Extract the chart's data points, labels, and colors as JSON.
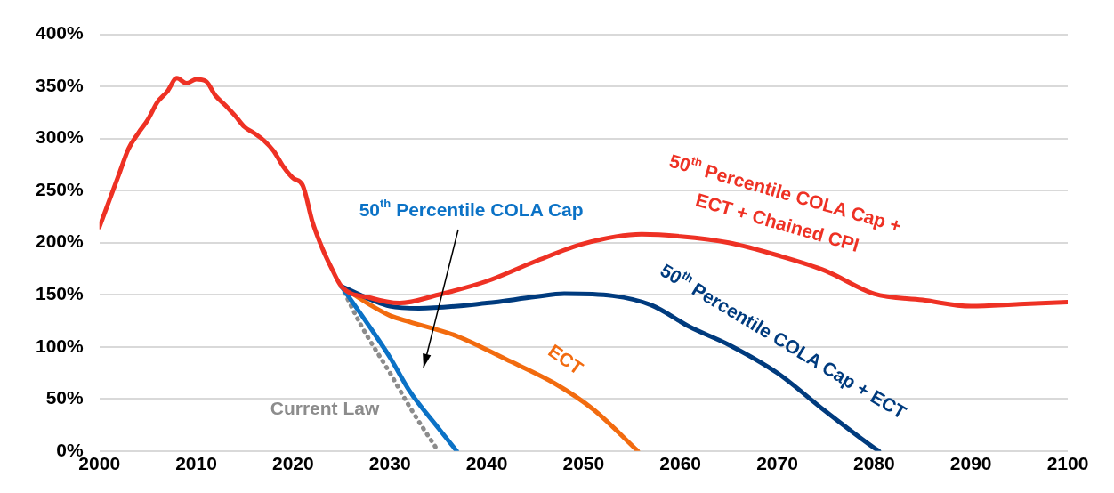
{
  "chart_data": {
    "type": "line",
    "xlim": [
      2000,
      2100
    ],
    "xticks": [
      2000,
      2010,
      2020,
      2030,
      2040,
      2050,
      2060,
      2070,
      2080,
      2090,
      2100
    ],
    "ylim": [
      0,
      400
    ],
    "yticks": [
      {
        "value": 0,
        "label": "0%"
      },
      {
        "value": 50,
        "label": "50%"
      },
      {
        "value": 100,
        "label": "100%"
      },
      {
        "value": 150,
        "label": "150%"
      },
      {
        "value": 200,
        "label": "200%"
      },
      {
        "value": 250,
        "label": "250%"
      },
      {
        "value": 300,
        "label": "300%"
      },
      {
        "value": 350,
        "label": "350%"
      },
      {
        "value": 400,
        "label": "400%"
      }
    ],
    "grid": "y",
    "legend": false,
    "series": [
      {
        "name": "50$^{th}$ Percentile COLA Cap + ECT + Chained CPI",
        "color": "#ee3124",
        "x": [
          2000,
          2001,
          2002,
          2003,
          2004,
          2005,
          2006,
          2007,
          2008,
          2009,
          2010,
          2011,
          2012,
          2013,
          2014,
          2015,
          2016,
          2017,
          2018,
          2019,
          2020,
          2021,
          2022,
          2023,
          2024,
          2025,
          2028,
          2031,
          2035,
          2040,
          2045,
          2050,
          2056,
          2060,
          2065,
          2070,
          2075,
          2080,
          2085,
          2090,
          2095,
          2100
        ],
        "values": [
          215,
          240,
          265,
          290,
          305,
          318,
          335,
          345,
          358,
          353,
          357,
          355,
          341,
          332,
          322,
          311,
          305,
          298,
          288,
          273,
          262,
          255,
          220,
          195,
          175,
          158,
          147,
          142,
          150,
          163,
          182,
          199,
          208,
          206,
          200,
          188,
          173,
          151,
          145,
          139,
          141,
          143
        ]
      },
      {
        "name": "50$^{th}$ Percentile COLA Cap + ECT",
        "color": "#003b7e",
        "x": [
          2025,
          2030,
          2033,
          2040,
          2045,
          2048,
          2053,
          2057,
          2061,
          2065,
          2070,
          2075,
          2080,
          2080.5
        ],
        "values": [
          158,
          139,
          137,
          142,
          148,
          151,
          149,
          140,
          119,
          102,
          75,
          38,
          3,
          0
        ]
      },
      {
        "name": "ECT",
        "color": "#f26b0f",
        "x": [
          2025,
          2028,
          2030,
          2032,
          2037,
          2042,
          2047,
          2051,
          2055.6
        ],
        "values": [
          158,
          140,
          130,
          124,
          110,
          88,
          65,
          40,
          0
        ]
      },
      {
        "name": "50$^{th}$ Percentile COLA Cap",
        "color": "#0b72c6",
        "x": [
          2025,
          2028,
          2030,
          2032,
          2035,
          2036.9
        ],
        "values": [
          158,
          118,
          90,
          58,
          22,
          0
        ]
      },
      {
        "name": "Current Law",
        "color": "#8c8c8c",
        "line_style": "dotted",
        "x": [
          2025,
          2027,
          2030,
          2032,
          2034.7,
          2035
        ],
        "values": [
          158,
          121,
          75,
          43,
          4,
          0
        ]
      }
    ]
  }
}
